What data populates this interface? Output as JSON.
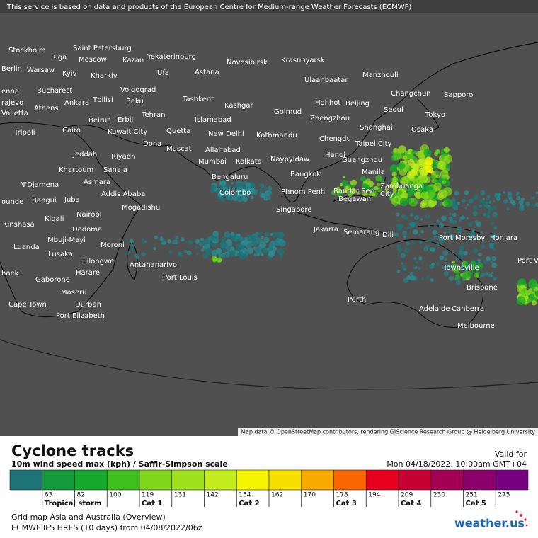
{
  "header": {
    "notice": "This service is based on data and products of the European Centre for Medium-range Weather Forecasts (ECMWF)"
  },
  "map": {
    "attribution": "Map data © OpenStreetMap contributors, rendering GIScience Research Group @ Heidelberg University",
    "cities": [
      "Stockholm",
      "Saint Petersburg",
      "Riga",
      "Moscow",
      "Kazan",
      "Yekaterinburg",
      "Novosibirsk",
      "Krasnoyarsk",
      "Berlin",
      "Warsaw",
      "Kyiv",
      "Kharkiv",
      "Ufa",
      "Astana",
      "Ulaanbaatar",
      "Manzhouli",
      "enna",
      "Bucharest",
      "Volgograd",
      "Changchun",
      "Sapporo",
      "rajevo",
      "Tbilisi",
      "Baku",
      "Tashkent",
      "Kashgar",
      "Hohhot",
      "Beijing",
      "Seoul",
      "Valletta",
      "Athens",
      "Ankara",
      "Tehran",
      "Islamabad",
      "Golmud",
      "Zhengzhou",
      "Tokyo",
      "Tripoli",
      "Cairo",
      "Beirut",
      "Erbil",
      "Kuwait City",
      "Quetta",
      "New Delhi",
      "Kathmandu",
      "Shanghai",
      "Osaka",
      "Chengdu",
      "Doha",
      "Muscat",
      "Allahabad",
      "Taipei City",
      "Jeddah",
      "Riyadh",
      "Mumbai",
      "Kolkata",
      "Naypyidaw",
      "Hanoi",
      "Guangzhou",
      "Khartoum",
      "Sana'a",
      "Bengaluru",
      "Bangkok",
      "Manila",
      "N'Djamena",
      "Asmara",
      "Addis Ababa",
      "Colombo",
      "Phnom Penh",
      "Bandar Seri",
      "Begawan",
      "Zamboanga",
      "City",
      "ounde",
      "Bangui",
      "Juba",
      "Mogadishu",
      "Singapore",
      "Kigali",
      "Nairobi",
      "Kinshasa",
      "Dodoma",
      "Jakarta",
      "Semarang",
      "Dili",
      "Port Moresby",
      "Honiara",
      "Luanda",
      "Mbuji-Mayi",
      "Moroni",
      "Lusaka",
      "Lilongwe",
      "Antananarivo",
      "Harare",
      "Townsville",
      "Port V",
      "hoek",
      "Gaborone",
      "Port Louis",
      "Brisbane",
      "Maseru",
      "Perth",
      "Cape Town",
      "Durban",
      "Port Elizabeth",
      "Adelaide",
      "Canberra",
      "Melbourne"
    ]
  },
  "legend": {
    "title": "Cyclone tracks",
    "subtitle": "10m wind speed max (kph) / Saffir-Simpson scale",
    "valid_label": "Valid for",
    "valid_time": "Mon 04/18/2022, 10:00am GMT+04",
    "colors": [
      "#1e7377",
      "#159a3b",
      "#16a82c",
      "#3fbf1c",
      "#7fd61a",
      "#9fe01c",
      "#c2ec1e",
      "#f5f500",
      "#f7df00",
      "#f8a900",
      "#f96600",
      "#e7001e",
      "#c60033",
      "#a30053",
      "#8b006a",
      "#76007f"
    ],
    "ticks": [
      63,
      82,
      100,
      119,
      131,
      142,
      154,
      162,
      170,
      178,
      194,
      209,
      230,
      251,
      275
    ],
    "categories": [
      "Tropical storm",
      "Cat 1",
      "Cat 2",
      "Cat 3",
      "Cat 4",
      "Cat 5"
    ]
  },
  "footer": {
    "line1": "Grid map Asia and Australia (Overview)",
    "line2": "ECMWF IFS HRES (10 days) from 04/08/2022/06z",
    "logo": "weather.us"
  }
}
